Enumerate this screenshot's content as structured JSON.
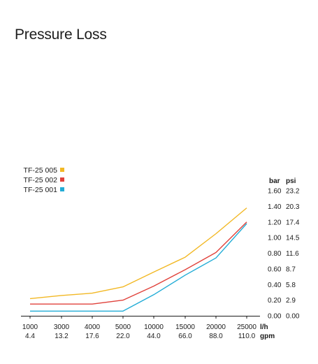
{
  "title": "Pressure Loss",
  "chart_data": {
    "type": "line",
    "x_categories_primary": [
      "1000",
      "3000",
      "4000",
      "5000",
      "10000",
      "15000",
      "20000",
      "25000"
    ],
    "x_categories_secondary": [
      "4.4",
      "13.2",
      "17.6",
      "22.0",
      "44.0",
      "66.0",
      "88.0",
      "110.0"
    ],
    "x_unit_primary": "l/h",
    "x_unit_secondary": "gpm",
    "y_unit_primary": "bar",
    "y_unit_secondary": "psi",
    "y_ticks_bar": [
      "1.60",
      "1.40",
      "1.20",
      "1.00",
      "0.80",
      "0.60",
      "0.40",
      "0.20",
      "0.00"
    ],
    "y_ticks_psi": [
      "23.2",
      "20.3",
      "17.4",
      "14.5",
      "11.6",
      "8.7",
      "5.8",
      "2.9",
      "0.00"
    ],
    "ylim": [
      0,
      1.6
    ],
    "grid": false,
    "legend_position": "top-left",
    "series": [
      {
        "name": "TF-25 005",
        "color": "#f2b824",
        "values": [
          0.22,
          0.26,
          0.29,
          0.37,
          0.56,
          0.75,
          1.05,
          1.38
        ]
      },
      {
        "name": "TF-25 002",
        "color": "#e0423b",
        "values": [
          0.15,
          0.15,
          0.15,
          0.2,
          0.38,
          0.59,
          0.81,
          1.2
        ]
      },
      {
        "name": "TF-25 001",
        "color": "#22acd6",
        "values": [
          0.06,
          0.06,
          0.06,
          0.06,
          0.27,
          0.52,
          0.74,
          1.18
        ]
      }
    ]
  }
}
